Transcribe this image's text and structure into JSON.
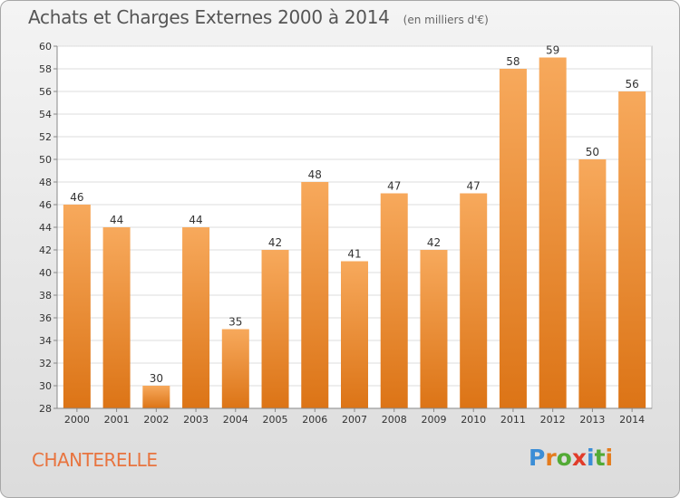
{
  "header": {
    "title": "Achats et Charges Externes 2000 à 2014",
    "subtitle": "(en milliers d'€)"
  },
  "footer": {
    "place": "CHANTERELLE",
    "logo": "Proxiti"
  },
  "colors": {
    "bar_light": "#f7a95c",
    "bar_dark": "#dc7416",
    "place_text": "#e8743f",
    "grid": "#dddddd",
    "logo_letters": [
      "#3b8dd6",
      "#e47c1e",
      "#52aa35",
      "#e13c2a",
      "#3b8dd6",
      "#52aa35",
      "#e47c1e"
    ]
  },
  "chart_data": {
    "type": "bar",
    "title": "Achats et Charges Externes 2000 à 2014",
    "subtitle": "(en milliers d'€)",
    "xlabel": "",
    "ylabel": "",
    "categories": [
      "2000",
      "2001",
      "2002",
      "2003",
      "2004",
      "2005",
      "2006",
      "2007",
      "2008",
      "2009",
      "2010",
      "2011",
      "2012",
      "2013",
      "2014"
    ],
    "values": [
      46,
      44,
      30,
      44,
      35,
      42,
      48,
      41,
      47,
      42,
      47,
      58,
      59,
      50,
      56
    ],
    "ylim": [
      28,
      60
    ],
    "yticks": [
      28,
      30,
      32,
      34,
      36,
      38,
      40,
      42,
      44,
      46,
      48,
      50,
      52,
      54,
      56,
      58,
      60
    ],
    "grid": true,
    "data_labels": true
  }
}
